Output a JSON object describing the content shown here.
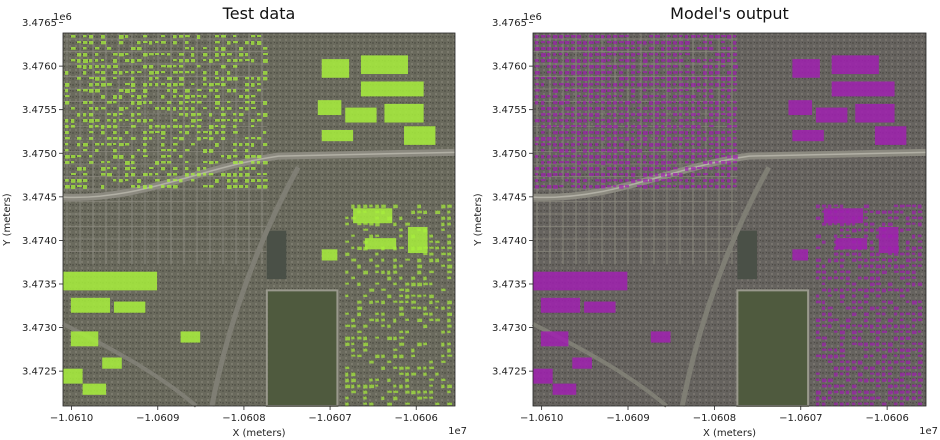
{
  "chart_data": [
    {
      "type": "image",
      "title": "Test data",
      "xlabel": "X (meters)",
      "ylabel": "Y (meters)",
      "x_ticks": [
        "−1.0610",
        "−1.0609",
        "−1.0608",
        "−1.0607",
        "−1.0606"
      ],
      "x_tick_values": [
        -1.061,
        -1.0609,
        -1.0608,
        -1.0607,
        -1.0606
      ],
      "x_multiplier": "1e7",
      "xlim": [
        -1.06101,
        -1.060555
      ],
      "y_ticks": [
        "3.4765",
        "3.4760",
        "3.4755",
        "3.4750",
        "3.4745",
        "3.4740",
        "3.4735",
        "3.4730",
        "3.4725"
      ],
      "y_tick_values": [
        3.4765,
        3.476,
        3.4755,
        3.475,
        3.4745,
        3.474,
        3.4735,
        3.473,
        3.4725
      ],
      "y_multiplier": "1e6",
      "ylim": [
        3.4721,
        3.47638
      ],
      "overlay_color": "#a8f03c"
    },
    {
      "type": "image",
      "title": "Model's output",
      "xlabel": "X (meters)",
      "ylabel": "Y (meters)",
      "x_ticks": [
        "−1.0610",
        "−1.0609",
        "−1.0608",
        "−1.0607",
        "−1.0606"
      ],
      "x_tick_values": [
        -1.061,
        -1.0609,
        -1.0608,
        -1.0607,
        -1.0606
      ],
      "x_multiplier": "1e7",
      "xlim": [
        -1.06101,
        -1.060555
      ],
      "y_ticks": [
        "3.4765",
        "3.4760",
        "3.4755",
        "3.4750",
        "3.4745",
        "3.4740",
        "3.4735",
        "3.4730",
        "3.4725"
      ],
      "y_tick_values": [
        3.4765,
        3.476,
        3.4755,
        3.475,
        3.4745,
        3.474,
        3.4735,
        3.473,
        3.4725
      ],
      "y_multiplier": "1e6",
      "ylim": [
        3.4721,
        3.47638
      ],
      "overlay_color": "#a020b0"
    }
  ],
  "colors": {
    "aerial_base": "#6b6a5c",
    "road": "#8c8a80",
    "field": "#4f5a3e"
  }
}
